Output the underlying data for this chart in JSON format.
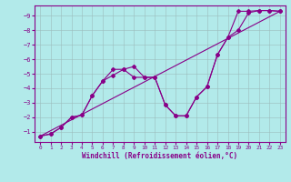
{
  "xlabel": "Windchill (Refroidissement éolien,°C)",
  "background_color": "#b2eaea",
  "grid_color": "#9bbcbc",
  "line_color": "#880088",
  "xlim": [
    -0.5,
    23.5
  ],
  "ylim": [
    -9.7,
    -0.3
  ],
  "xticks": [
    0,
    1,
    2,
    3,
    4,
    5,
    6,
    7,
    8,
    9,
    10,
    11,
    12,
    13,
    14,
    15,
    16,
    17,
    18,
    19,
    20,
    21,
    22,
    23
  ],
  "yticks": [
    -1,
    -2,
    -3,
    -4,
    -5,
    -6,
    -7,
    -8,
    -9
  ],
  "curve1_x": [
    0,
    1,
    2,
    3,
    4,
    5,
    6,
    7,
    8,
    9,
    10,
    11,
    12,
    13,
    14,
    15,
    16,
    17,
    18,
    19,
    20,
    21,
    22,
    23
  ],
  "curve1_y": [
    -0.7,
    -0.85,
    -1.3,
    -2.0,
    -2.15,
    -3.5,
    -4.5,
    -4.9,
    -5.3,
    -5.5,
    -4.75,
    -4.75,
    -2.85,
    -2.1,
    -2.1,
    -3.4,
    -4.1,
    -6.3,
    -7.5,
    -9.3,
    -9.3,
    -9.35,
    -9.35,
    -9.3
  ],
  "curve2_x": [
    0,
    1,
    2,
    3,
    4,
    5,
    6,
    7,
    8,
    9,
    10,
    11,
    12,
    13,
    14,
    15,
    16,
    17,
    18,
    19,
    20,
    21,
    22,
    23
  ],
  "curve2_y": [
    -0.7,
    -0.85,
    -1.3,
    -2.0,
    -2.15,
    -3.5,
    -4.5,
    -5.3,
    -5.3,
    -4.75,
    -4.75,
    -4.75,
    -2.85,
    -2.1,
    -2.1,
    -3.4,
    -4.1,
    -6.3,
    -7.5,
    -8.0,
    -9.2,
    -9.35,
    -9.35,
    -9.3
  ],
  "line3_x": [
    0,
    23
  ],
  "line3_y": [
    -0.7,
    -9.3
  ],
  "marker": "D",
  "markersize": 2.0,
  "linewidth": 0.8
}
